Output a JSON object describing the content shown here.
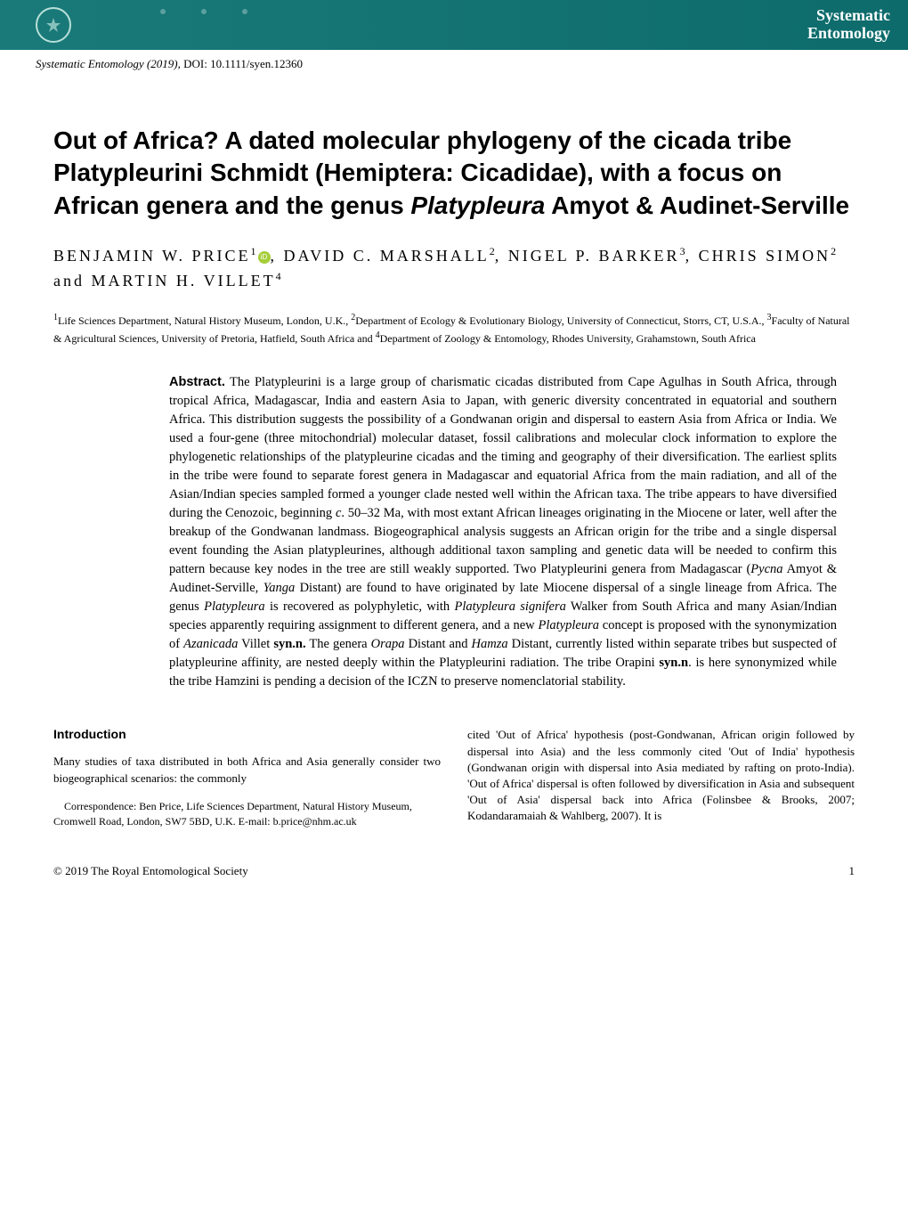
{
  "header": {
    "journal_line1": "Systematic",
    "journal_line2": "Entomology",
    "colors": {
      "bar_bg": "#1a7a7a",
      "text": "#ffffff"
    }
  },
  "citation": {
    "journal": "Systematic Entomology",
    "year": "(2019)",
    "doi_label": "DOI:",
    "doi": "10.1111/syen.12360"
  },
  "title": {
    "part1": "Out of Africa? A dated molecular phylogeny of the cicada tribe Platypleurini Schmidt (Hemiptera: Cicadidae), with a focus on African genera and the genus ",
    "genus": "Platypleura",
    "part2": " Amyot & Audinet-Serville"
  },
  "authors": {
    "a1_name": "BENJAMIN W. PRICE",
    "a1_sup": "1",
    "a2_name": "DAVID C. MARSHALL",
    "a2_sup": "2",
    "a3_name": "NIGEL P. BARKER",
    "a3_sup": "3",
    "a4_name": "CHRIS SIMON",
    "a4_sup": "2",
    "a5_name": "MARTIN H. VILLET",
    "a5_sup": "4"
  },
  "affiliations": {
    "aff1_sup": "1",
    "aff1": "Life Sciences Department, Natural History Museum, London, U.K., ",
    "aff2_sup": "2",
    "aff2": "Department of Ecology & Evolutionary Biology, University of Connecticut, Storrs, CT, U.S.A., ",
    "aff3_sup": "3",
    "aff3": "Faculty of Natural & Agricultural Sciences, University of Pretoria, Hatfield, South Africa and ",
    "aff4_sup": "4",
    "aff4": "Department of Zoology & Entomology, Rhodes University, Grahamstown, South Africa"
  },
  "abstract": {
    "label": "Abstract.",
    "text_parts": [
      {
        "t": " The Platypleurini is a large group of charismatic cicadas distributed from Cape Agulhas in South Africa, through tropical Africa, Madagascar, India and eastern Asia to Japan, with generic diversity concentrated in equatorial and southern Africa. This distribution suggests the possibility of a Gondwanan origin and dispersal to eastern Asia from Africa or India. We used a four-gene (three mitochondrial) molecular dataset, fossil calibrations and molecular clock information to explore the phylogenetic relationships of the platypleurine cicadas and the timing and geography of their diversification. The earliest splits in the tribe were found to separate forest genera in Madagascar and equatorial Africa from the main radiation, and all of the Asian/Indian species sampled formed a younger clade nested well within the African taxa. The tribe appears to have diversified during the Cenozoic, beginning ",
        "style": "normal"
      },
      {
        "t": "c",
        "style": "italic"
      },
      {
        "t": ". 50–32 Ma, with most extant African lineages originating in the Miocene or later, well after the breakup of the Gondwanan landmass. Biogeographical analysis suggests an African origin for the tribe and a single dispersal event founding the Asian platypleurines, although additional taxon sampling and genetic data will be needed to confirm this pattern because key nodes in the tree are still weakly supported. Two Platypleurini genera from Madagascar (",
        "style": "normal"
      },
      {
        "t": "Pycna",
        "style": "italic"
      },
      {
        "t": " Amyot & Audinet-Serville, ",
        "style": "normal"
      },
      {
        "t": "Yanga",
        "style": "italic"
      },
      {
        "t": " Distant) are found to have originated by late Miocene dispersal of a single lineage from Africa. The genus ",
        "style": "normal"
      },
      {
        "t": "Platypleura",
        "style": "italic"
      },
      {
        "t": " is recovered as polyphyletic, with ",
        "style": "normal"
      },
      {
        "t": "Platypleura signifera",
        "style": "italic"
      },
      {
        "t": " Walker from South Africa and many Asian/Indian species apparently requiring assignment to different genera, and a new ",
        "style": "normal"
      },
      {
        "t": "Platypleura",
        "style": "italic"
      },
      {
        "t": " concept is proposed with the synonymization of ",
        "style": "normal"
      },
      {
        "t": "Azanicada",
        "style": "italic"
      },
      {
        "t": " Villet ",
        "style": "normal"
      },
      {
        "t": "syn.n.",
        "style": "bold"
      },
      {
        "t": " The genera ",
        "style": "normal"
      },
      {
        "t": "Orapa",
        "style": "italic"
      },
      {
        "t": " Distant and ",
        "style": "normal"
      },
      {
        "t": "Hamza",
        "style": "italic"
      },
      {
        "t": " Distant, currently listed within separate tribes but suspected of platypleurine affinity, are nested deeply within the Platypleurini radiation. The tribe Orapini ",
        "style": "normal"
      },
      {
        "t": "syn.n",
        "style": "bold"
      },
      {
        "t": ". is here synonymized while the tribe Hamzini is pending a decision of the ICZN to preserve nomenclatorial stability.",
        "style": "normal"
      }
    ]
  },
  "introduction": {
    "heading": "Introduction",
    "col1_text": "Many studies of taxa distributed in both Africa and Asia generally consider two biogeographical scenarios: the commonly",
    "correspondence": "Correspondence:   Ben Price, Life Sciences Department, Natural History Museum, Cromwell Road, London, SW7 5BD, U.K. E-mail: b.price@nhm.ac.uk",
    "col2_text": "cited 'Out of Africa' hypothesis (post-Gondwanan, African origin followed by dispersal into Asia) and the less commonly cited 'Out of India' hypothesis (Gondwanan origin with dispersal into Asia mediated by rafting on proto-India). 'Out of Africa' dispersal is often followed by diversification in Asia and subsequent 'Out of Asia' dispersal back into Africa (Folinsbee & Brooks, 2007; Kodandaramaiah & Wahlberg, 2007). It is"
  },
  "footer": {
    "copyright": "© 2019 The Royal Entomological Society",
    "page": "1"
  }
}
